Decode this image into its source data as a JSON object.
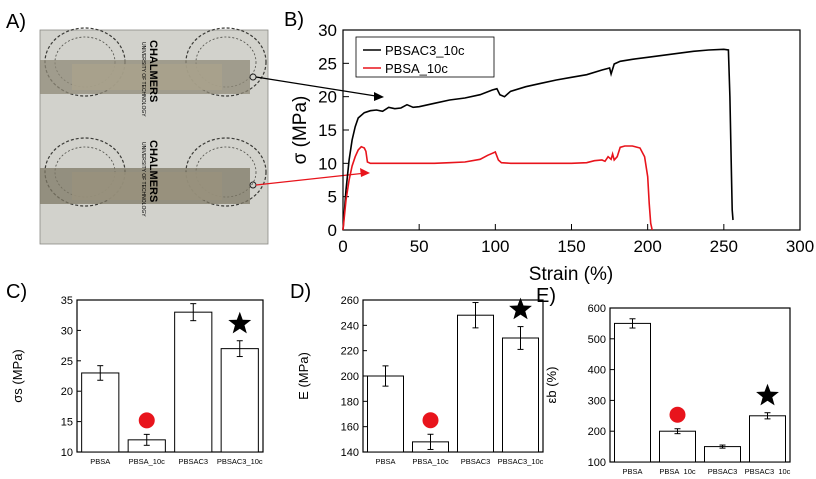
{
  "panels": {
    "a": {
      "letter": "A)",
      "logo_text": [
        "CHALMERS",
        "UNIVERSITY OF TECHNOLOGY"
      ]
    },
    "b": {
      "letter": "B)"
    },
    "c": {
      "letter": "C)"
    },
    "d": {
      "letter": "D)"
    },
    "e": {
      "letter": "E)"
    }
  },
  "chart_data": [
    {
      "id": "B",
      "type": "line",
      "xlabel": "Strain (%)",
      "ylabel": "σ (MPa)",
      "xlim": [
        0,
        300
      ],
      "ylim": [
        0,
        30
      ],
      "xticks": [
        0,
        50,
        100,
        150,
        200,
        250,
        300
      ],
      "yticks": [
        0,
        5,
        10,
        15,
        20,
        25,
        30
      ],
      "legend_position": "top-left",
      "series": [
        {
          "name": "PBSAC3_10c",
          "color": "#000000",
          "x": [
            0,
            2,
            4,
            6,
            8,
            10,
            14,
            18,
            22,
            26,
            30,
            34,
            38,
            42,
            46,
            50,
            60,
            70,
            80,
            90,
            98,
            101,
            103,
            106,
            110,
            120,
            130,
            140,
            150,
            160,
            170,
            175,
            176,
            178,
            182,
            190,
            200,
            210,
            220,
            230,
            240,
            250,
            253,
            254,
            255,
            255.5,
            256
          ],
          "y": [
            0,
            6,
            10.5,
            13.5,
            15.5,
            16.8,
            17.6,
            17.9,
            18.0,
            17.8,
            18.4,
            18.2,
            18.3,
            18.8,
            18.4,
            18.5,
            19.0,
            19.5,
            19.8,
            20.3,
            21.0,
            21.2,
            20.3,
            20.0,
            20.8,
            21.5,
            22.0,
            22.5,
            22.9,
            23.3,
            24.0,
            24.3,
            23.4,
            24.9,
            25.3,
            25.6,
            25.9,
            26.2,
            26.5,
            26.8,
            27.0,
            27.1,
            27.0,
            20.0,
            8.0,
            3.0,
            1.5
          ]
        },
        {
          "name": "PBSA_10c",
          "color": "#e8141c",
          "x": [
            0,
            2,
            4,
            6,
            8,
            10,
            12,
            13,
            14,
            15,
            16,
            18,
            20,
            30,
            40,
            50,
            60,
            70,
            80,
            90,
            95,
            98,
            100,
            102,
            104,
            110,
            120,
            130,
            140,
            150,
            160,
            165,
            170,
            172,
            174,
            176,
            177,
            178,
            180,
            182,
            185,
            190,
            195,
            198,
            200,
            201,
            202,
            203
          ],
          "y": [
            0,
            4.5,
            7.5,
            9.6,
            11.0,
            12.0,
            12.5,
            12.4,
            12.3,
            11.8,
            10.2,
            10.0,
            10.0,
            10.0,
            10.0,
            10.0,
            10.0,
            10.1,
            10.2,
            10.6,
            11.2,
            11.5,
            11.7,
            10.5,
            10.1,
            10.0,
            10.0,
            10.0,
            10.0,
            10.0,
            10.1,
            10.4,
            10.5,
            10.3,
            11.0,
            10.6,
            11.4,
            10.5,
            11.0,
            12.4,
            12.6,
            12.6,
            12.3,
            11.0,
            8.0,
            4.0,
            1.0,
            0
          ]
        }
      ]
    },
    {
      "id": "C",
      "type": "bar",
      "ylabel": "σs (MPa)",
      "ylim": [
        10,
        35
      ],
      "yticks": [
        10,
        15,
        20,
        25,
        30,
        35
      ],
      "categories": [
        "PBSA",
        "PBSA_10c",
        "PBSAC3",
        "PBSAC3_10c"
      ],
      "values": [
        23,
        12,
        33,
        27
      ],
      "errors": [
        1.2,
        0.9,
        1.4,
        1.3
      ],
      "markers": [
        {
          "category": "PBSA_10c",
          "shape": "circle",
          "color": "#e8141c"
        },
        {
          "category": "PBSAC3_10c",
          "shape": "star",
          "color": "#000000"
        }
      ]
    },
    {
      "id": "D",
      "type": "bar",
      "ylabel": "E (MPa)",
      "ylim": [
        140,
        260
      ],
      "yticks": [
        140,
        160,
        180,
        200,
        220,
        240,
        260
      ],
      "categories": [
        "PBSA",
        "PBSA_10c",
        "PBSAC3",
        "PBSAC3_10c"
      ],
      "values": [
        200,
        148,
        248,
        230
      ],
      "errors": [
        8,
        6,
        10,
        9
      ],
      "markers": [
        {
          "category": "PBSA_10c",
          "shape": "circle",
          "color": "#e8141c"
        },
        {
          "category": "PBSAC3_10c",
          "shape": "star",
          "color": "#000000"
        }
      ]
    },
    {
      "id": "E",
      "type": "bar",
      "ylabel": "εb (%)",
      "ylim": [
        100,
        600
      ],
      "yticks": [
        100,
        200,
        300,
        400,
        500,
        600
      ],
      "categories": [
        "PBSA",
        "PBSA_10c",
        "PBSAC3",
        "PBSAC3_10c"
      ],
      "values": [
        550,
        200,
        150,
        250
      ],
      "errors": [
        15,
        8,
        5,
        10
      ],
      "markers": [
        {
          "category": "PBSA_10c",
          "shape": "circle",
          "color": "#e8141c"
        },
        {
          "category": "PBSAC3_10c",
          "shape": "star",
          "color": "#000000"
        }
      ]
    }
  ]
}
